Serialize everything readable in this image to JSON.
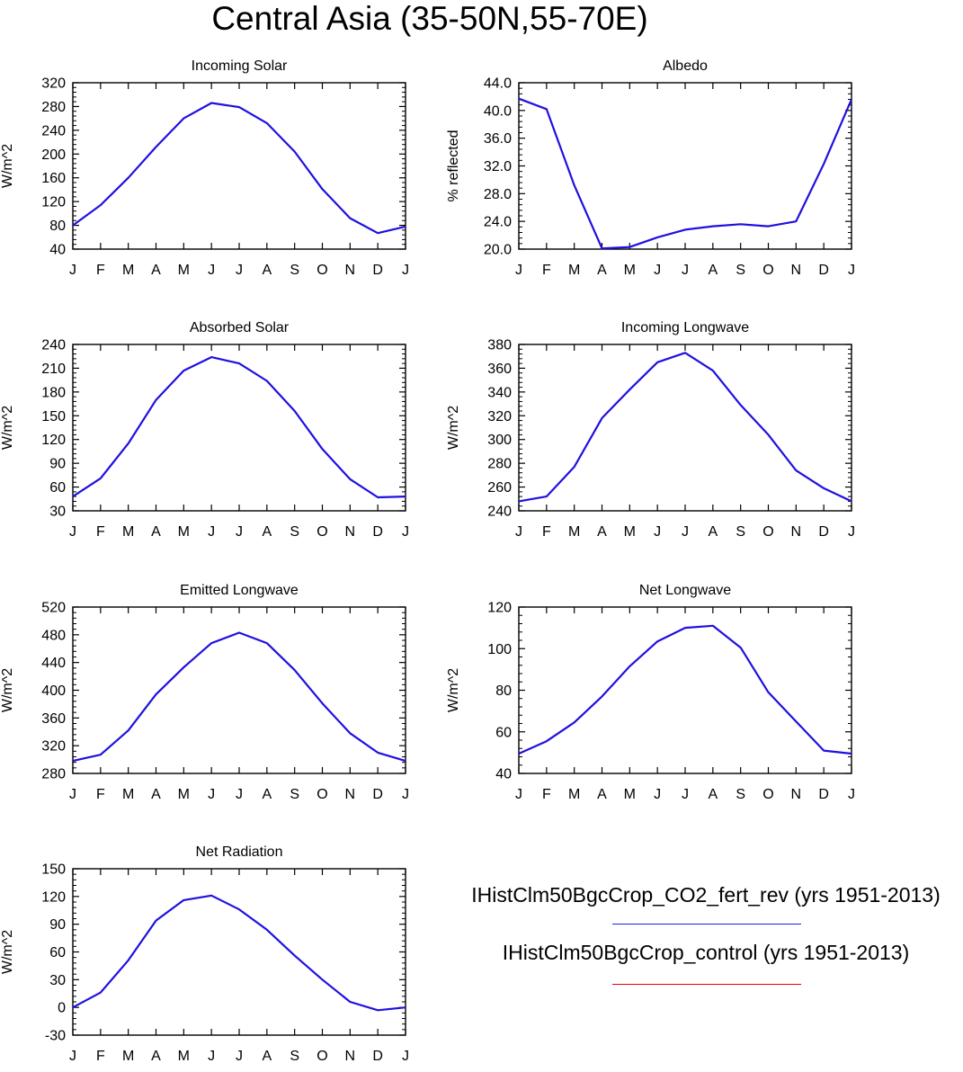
{
  "figure": {
    "title": "Central Asia (35-50N,55-70E)",
    "colors": {
      "series_line": "#1f10e0",
      "control_line": "#e00000",
      "axis": "#000000"
    }
  },
  "legend": {
    "entries": [
      {
        "label": "IHistClm50BgcCrop_CO2_fert_rev (yrs 1951-2013)",
        "color": "#2020e0"
      },
      {
        "label": "IHistClm50BgcCrop_control (yrs 1951-2013)",
        "color": "#e00000"
      }
    ]
  },
  "chart_data": [
    {
      "type": "line",
      "title": "Incoming Solar",
      "ylabel": "W/m^2",
      "xlabel": "",
      "categories": [
        "J",
        "F",
        "M",
        "A",
        "M",
        "J",
        "J",
        "A",
        "S",
        "O",
        "N",
        "D",
        "J"
      ],
      "ylim": [
        40,
        320
      ],
      "yticks": [
        40,
        80,
        120,
        160,
        200,
        240,
        280,
        320
      ],
      "ytick_labels": [
        "40",
        "80",
        "120",
        "160",
        "200",
        "240",
        "280",
        "320"
      ],
      "series": [
        {
          "values": [
            80,
            114,
            160,
            212,
            260,
            286,
            279,
            252,
            204,
            141,
            92,
            67,
            78
          ]
        }
      ]
    },
    {
      "type": "line",
      "title": "Albedo",
      "ylabel": "% reflected",
      "xlabel": "",
      "categories": [
        "J",
        "F",
        "M",
        "A",
        "M",
        "J",
        "J",
        "A",
        "S",
        "O",
        "N",
        "D",
        "J"
      ],
      "ylim": [
        20,
        44
      ],
      "yticks": [
        20,
        24,
        28,
        32,
        36,
        40,
        44
      ],
      "ytick_labels": [
        "20.0",
        "24.0",
        "28.0",
        "32.0",
        "36.0",
        "40.0",
        "44.0"
      ],
      "series": [
        {
          "values": [
            41.7,
            40.2,
            29.2,
            20.1,
            20.3,
            21.7,
            22.8,
            23.3,
            23.6,
            23.3,
            24.0,
            32.3,
            41.6
          ]
        }
      ]
    },
    {
      "type": "line",
      "title": "Absorbed Solar",
      "ylabel": "W/m^2",
      "xlabel": "",
      "categories": [
        "J",
        "F",
        "M",
        "A",
        "M",
        "J",
        "J",
        "A",
        "S",
        "O",
        "N",
        "D",
        "J"
      ],
      "ylim": [
        30,
        240
      ],
      "yticks": [
        30,
        60,
        90,
        120,
        150,
        180,
        210,
        240
      ],
      "ytick_labels": [
        "30",
        "60",
        "90",
        "120",
        "150",
        "180",
        "210",
        "240"
      ],
      "series": [
        {
          "values": [
            48,
            71,
            115,
            170,
            207,
            224,
            216,
            194,
            156,
            108,
            70,
            47,
            48
          ]
        }
      ]
    },
    {
      "type": "line",
      "title": "Incoming Longwave",
      "ylabel": "W/m^2",
      "xlabel": "",
      "categories": [
        "J",
        "F",
        "M",
        "A",
        "M",
        "J",
        "J",
        "A",
        "S",
        "O",
        "N",
        "D",
        "J"
      ],
      "ylim": [
        240,
        380
      ],
      "yticks": [
        240,
        260,
        280,
        300,
        320,
        340,
        360,
        380
      ],
      "ytick_labels": [
        "240",
        "260",
        "280",
        "300",
        "320",
        "340",
        "360",
        "380"
      ],
      "series": [
        {
          "values": [
            248,
            252,
            277,
            318,
            342,
            365,
            373,
            358,
            329,
            304,
            274,
            259,
            248
          ]
        }
      ]
    },
    {
      "type": "line",
      "title": "Emitted Longwave",
      "ylabel": "W/m^2",
      "xlabel": "",
      "categories": [
        "J",
        "F",
        "M",
        "A",
        "M",
        "J",
        "J",
        "A",
        "S",
        "O",
        "N",
        "D",
        "J"
      ],
      "ylim": [
        280,
        520
      ],
      "yticks": [
        280,
        320,
        360,
        400,
        440,
        480,
        520
      ],
      "ytick_labels": [
        "280",
        "320",
        "360",
        "400",
        "440",
        "480",
        "520"
      ],
      "series": [
        {
          "values": [
            298,
            307,
            342,
            394,
            433,
            468,
            483,
            468,
            429,
            381,
            338,
            310,
            298
          ]
        }
      ]
    },
    {
      "type": "line",
      "title": "Net Longwave",
      "ylabel": "W/m^2",
      "xlabel": "",
      "categories": [
        "J",
        "F",
        "M",
        "A",
        "M",
        "J",
        "J",
        "A",
        "S",
        "O",
        "N",
        "D",
        "J"
      ],
      "ylim": [
        40,
        120
      ],
      "yticks": [
        40,
        60,
        80,
        100,
        120
      ],
      "ytick_labels": [
        "40",
        "60",
        "80",
        "100",
        "120"
      ],
      "series": [
        {
          "values": [
            49.5,
            55.5,
            64.5,
            77,
            91.5,
            103.5,
            110,
            111,
            100.5,
            79,
            65,
            51,
            49.5
          ]
        }
      ]
    },
    {
      "type": "line",
      "title": "Net Radiation",
      "ylabel": "W/m^2",
      "xlabel": "",
      "categories": [
        "J",
        "F",
        "M",
        "A",
        "M",
        "J",
        "J",
        "A",
        "S",
        "O",
        "N",
        "D",
        "J"
      ],
      "ylim": [
        -30,
        150
      ],
      "yticks": [
        -30,
        0,
        30,
        60,
        90,
        120,
        150
      ],
      "ytick_labels": [
        "-30",
        "0",
        "30",
        "60",
        "90",
        "120",
        "150"
      ],
      "series": [
        {
          "values": [
            0,
            16,
            51,
            94,
            116,
            121,
            106,
            84,
            56,
            30,
            6,
            -3,
            0
          ]
        }
      ]
    }
  ]
}
